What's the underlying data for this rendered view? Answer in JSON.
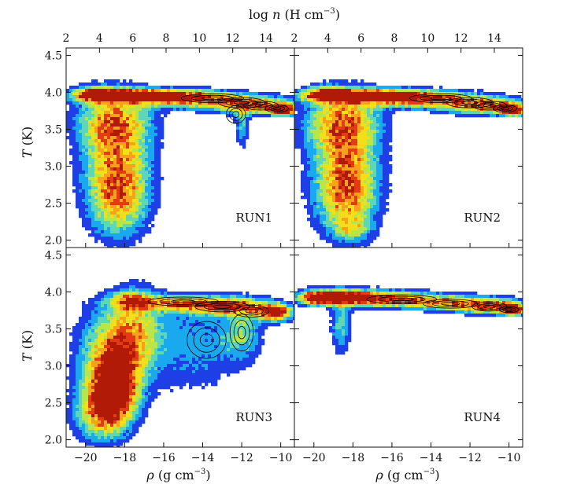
{
  "figure": {
    "top_axis_label": "log n (H cm⁻³)",
    "top_axis_label_parts": {
      "prefix": "log ",
      "var": "n",
      "unit": " (H cm",
      "exp": "−3",
      "close": ")"
    },
    "left_axis_label_parts": {
      "var": "T",
      "unit": " (K)"
    },
    "bottom_axis_label_parts": {
      "var": "ρ",
      "unit": " (g cm",
      "exp": "−3",
      "close": ")"
    },
    "colors": {
      "axis": "#111111",
      "contour": "#000000",
      "colormap": [
        "#1f3fe6",
        "#1aa9ef",
        "#5ed6b8",
        "#b7e54a",
        "#f2df1c",
        "#f7a21a",
        "#e43c12",
        "#b21a08"
      ]
    }
  },
  "chart_data": [
    {
      "type": "heatmap",
      "panel": "RUN1",
      "label": "RUN1",
      "xlabel": "ρ (g cm⁻³)",
      "ylabel": "T (K)",
      "xlabel_top": "log n (H cm⁻³)",
      "xlim": [
        -21,
        -9.3
      ],
      "ylim": [
        1.9,
        4.6
      ],
      "x_top_lim": [
        2,
        15.7
      ],
      "x_ticks": [
        -20,
        -18,
        -16,
        -14,
        -12,
        -10
      ],
      "x_top_ticks": [
        2,
        4,
        6,
        8,
        10,
        12,
        14
      ],
      "y_ticks": [
        2.0,
        2.5,
        3.0,
        3.5,
        4.0,
        4.5
      ],
      "x_tick_labels": [
        "−20",
        "−18",
        "−16",
        "−14",
        "−12",
        "−10"
      ],
      "x_top_tick_labels": [
        "2",
        "4",
        "6",
        "8",
        "10",
        "12",
        "14"
      ],
      "y_tick_labels": [
        "2.0",
        "2.5",
        "3.0",
        "3.5",
        "4.0",
        "4.5"
      ],
      "features": [
        {
          "name": "cold-diffuse-branch",
          "x_range": [
            -20.2,
            -16.9
          ],
          "y_range": [
            2.1,
            3.95
          ],
          "peak": [
            -18.3,
            2.9
          ]
        },
        {
          "name": "warm-plateau",
          "x_range": [
            -20.2,
            -9.5
          ],
          "y_range": [
            3.55,
            4.05
          ],
          "peak": [
            -17.6,
            3.95
          ]
        },
        {
          "name": "dense-tail",
          "x_range": [
            -12.5,
            -9.5
          ],
          "y_range": [
            3.6,
            3.9
          ],
          "peak": [
            -9.9,
            3.75
          ]
        }
      ]
    },
    {
      "type": "heatmap",
      "panel": "RUN2",
      "label": "RUN2",
      "xlabel": "ρ (g cm⁻³)",
      "ylabel": "T (K)",
      "xlabel_top": "log n (H cm⁻³)",
      "xlim": [
        -21,
        -9.3
      ],
      "ylim": [
        1.9,
        4.6
      ],
      "x_top_lim": [
        2,
        15.7
      ],
      "x_ticks": [
        -20,
        -18,
        -16,
        -14,
        -12,
        -10
      ],
      "x_top_ticks": [
        2,
        4,
        6,
        8,
        10,
        12,
        14
      ],
      "y_ticks": [
        2.0,
        2.5,
        3.0,
        3.5,
        4.0,
        4.5
      ],
      "x_tick_labels": [
        "−20",
        "−18",
        "−16",
        "−14",
        "−12",
        "−10"
      ],
      "x_top_tick_labels": [
        "2",
        "4",
        "6",
        "8",
        "10",
        "12",
        "14"
      ],
      "y_tick_labels": [
        "2.0",
        "2.5",
        "3.0",
        "3.5",
        "4.0",
        "4.5"
      ],
      "features": [
        {
          "name": "cold-diffuse-branch",
          "x_range": [
            -20.2,
            -16.9
          ],
          "y_range": [
            2.05,
            3.95
          ],
          "peak": [
            -18.3,
            2.9
          ]
        },
        {
          "name": "warm-plateau",
          "x_range": [
            -20.2,
            -9.5
          ],
          "y_range": [
            3.55,
            4.05
          ],
          "peak": [
            -17.6,
            3.95
          ]
        },
        {
          "name": "dense-tail",
          "x_range": [
            -12.5,
            -9.5
          ],
          "y_range": [
            3.6,
            3.9
          ],
          "peak": [
            -9.9,
            3.75
          ]
        }
      ]
    },
    {
      "type": "heatmap",
      "panel": "RUN3",
      "label": "RUN3",
      "xlabel": "ρ (g cm⁻³)",
      "ylabel": "T (K)",
      "xlim": [
        -21,
        -9.3
      ],
      "ylim": [
        1.9,
        4.6
      ],
      "x_ticks": [
        -20,
        -18,
        -16,
        -14,
        -12,
        -10
      ],
      "y_ticks": [
        2.0,
        2.5,
        3.0,
        3.5,
        4.0,
        4.5
      ],
      "x_tick_labels": [
        "−20",
        "−18",
        "−16",
        "−14",
        "−12",
        "−10"
      ],
      "y_tick_labels": [
        "2.0",
        "2.5",
        "3.0",
        "3.5",
        "4.0",
        "4.5"
      ],
      "features": [
        {
          "name": "cold-diffuse-blob",
          "x_range": [
            -20.5,
            -16.5
          ],
          "y_range": [
            2.0,
            3.6
          ],
          "peak": [
            -18.5,
            2.7
          ]
        },
        {
          "name": "scattered-dense-gas",
          "x_range": [
            -16.5,
            -11.0
          ],
          "y_range": [
            2.2,
            3.8
          ],
          "peak": [
            -14.0,
            3.3
          ]
        },
        {
          "name": "warm-plateau",
          "x_range": [
            -18.2,
            -9.5
          ],
          "y_range": [
            3.5,
            4.0
          ],
          "peak": [
            -10.3,
            3.7
          ]
        }
      ]
    },
    {
      "type": "heatmap",
      "panel": "RUN4",
      "label": "RUN4",
      "xlabel": "ρ (g cm⁻³)",
      "ylabel": "T (K)",
      "xlim": [
        -21,
        -9.3
      ],
      "ylim": [
        1.9,
        4.6
      ],
      "x_ticks": [
        -20,
        -18,
        -16,
        -14,
        -12,
        -10
      ],
      "y_ticks": [
        2.0,
        2.5,
        3.0,
        3.5,
        4.0,
        4.5
      ],
      "x_tick_labels": [
        "−20",
        "−18",
        "−16",
        "−14",
        "−12",
        "−10"
      ],
      "y_tick_labels": [
        "2.0",
        "2.5",
        "3.0",
        "3.5",
        "4.0",
        "4.5"
      ],
      "features": [
        {
          "name": "warm-plateau",
          "x_range": [
            -20.5,
            -9.5
          ],
          "y_range": [
            3.6,
            4.05
          ],
          "peak": [
            -18.5,
            3.95
          ]
        },
        {
          "name": "dense-tail",
          "x_range": [
            -14.0,
            -9.5
          ],
          "y_range": [
            3.6,
            3.9
          ],
          "peak": [
            -10.0,
            3.75
          ]
        },
        {
          "name": "cold-spur",
          "x_range": [
            -19.0,
            -18.2
          ],
          "y_range": [
            3.05,
            3.8
          ],
          "peak": [
            -18.6,
            3.7
          ]
        }
      ]
    }
  ]
}
